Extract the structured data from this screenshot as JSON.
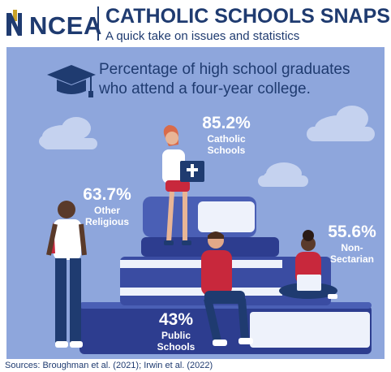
{
  "header": {
    "logo_text": "NCEA",
    "title": "CATHOLIC SCHOOLS SNAPS",
    "subtitle": "A quick take on issues and statistics"
  },
  "question": "Percentage of high school graduates who attend a four-year college.",
  "stats": {
    "catholic": {
      "value": "85.2%",
      "label_line1": "Catholic",
      "label_line2": "Schools"
    },
    "other_religious": {
      "value": "63.7%",
      "label_line1": "Other",
      "label_line2": "Religious"
    },
    "non_sectarian": {
      "value": "55.6%",
      "label_line1": "Non-",
      "label_line2": "Sectarian"
    },
    "public": {
      "value": "43%",
      "label_line1": "Public",
      "label_line2": "Schools"
    }
  },
  "footer": "Sources: Broughman et al. (2021); Irwin et al. (2022)",
  "colors": {
    "navy": "#1f3b70",
    "panel": "#8ea6dc",
    "book_dark": "#2d3d8f",
    "book_light": "#4a5fb5",
    "cloud": "#c5d2ef",
    "accent_red": "#c8283c"
  },
  "icons": [
    "graduation-cap-icon",
    "cross-icon",
    "book-icon"
  ]
}
